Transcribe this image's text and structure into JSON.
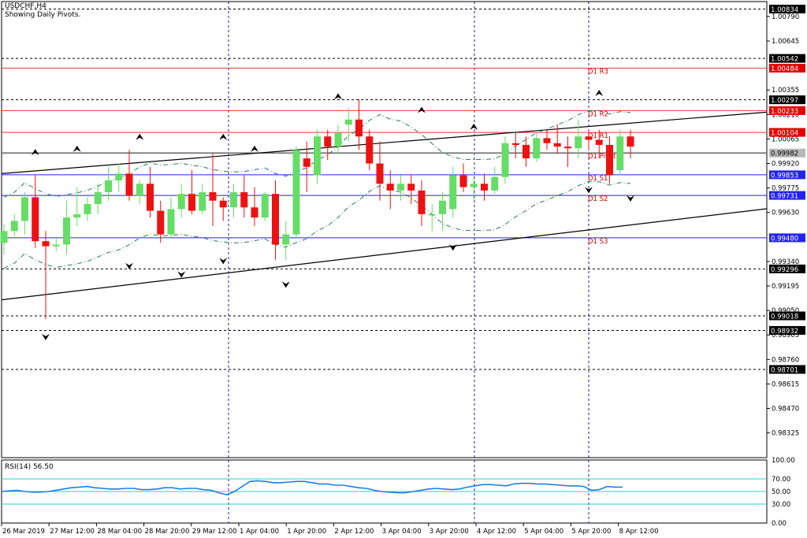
{
  "header": {
    "symbol_label": "USDCHF,H4",
    "status_text": "Showing Daily Pivots."
  },
  "colors": {
    "bull": "#66dd66",
    "bear": "#ee1111",
    "pivot_line": "#ee3333",
    "support_line": "#2222ee",
    "grid": "#1a1aaa",
    "rsi_line": "#1e7fe0",
    "rsi_levels": "#33cccc",
    "channel": "#000000",
    "envelope": "#2a7a55"
  },
  "price_axis": {
    "ticks": [
      "1.00790",
      "1.00645",
      "1.00355",
      "1.00210",
      "1.00065",
      "0.99920",
      "0.99775",
      "0.99630",
      "0.99340",
      "0.99195",
      "0.99050",
      "0.98905",
      "0.98760",
      "0.98615",
      "0.98470",
      "0.98325"
    ],
    "boxed_levels": [
      {
        "text": "1.00834",
        "style": "black"
      },
      {
        "text": "1.00542",
        "style": "black"
      },
      {
        "text": "1.00484",
        "style": "red"
      },
      {
        "text": "1.00297",
        "style": "black"
      },
      {
        "text": "1.00233",
        "style": "red"
      },
      {
        "text": "1.00104",
        "style": "red"
      },
      {
        "text": "0.99982",
        "style": "gray"
      },
      {
        "text": "0.99853",
        "style": "blue"
      },
      {
        "text": "0.99731",
        "style": "blue"
      },
      {
        "text": "0.99480",
        "style": "blue"
      },
      {
        "text": "0.99296",
        "style": "black"
      },
      {
        "text": "0.99018",
        "style": "black"
      },
      {
        "text": "0.98932",
        "style": "black"
      },
      {
        "text": "0.98701",
        "style": "black"
      }
    ]
  },
  "pivots": [
    {
      "label": "D1 R3",
      "price": 1.00484,
      "kind": "resistance"
    },
    {
      "label": "D1 R2",
      "price": 1.00233,
      "kind": "resistance"
    },
    {
      "label": "D1 R1",
      "price": 1.00104,
      "kind": "resistance"
    },
    {
      "label": "D1 Pivot",
      "price": 0.99982,
      "kind": "pivot"
    },
    {
      "label": "D1 S1",
      "price": 0.99853,
      "kind": "support"
    },
    {
      "label": "D1 S2",
      "price": 0.99731,
      "kind": "support"
    },
    {
      "label": "D1 S3",
      "price": 0.9948,
      "kind": "support"
    }
  ],
  "dashed_levels": [
    1.00834,
    1.00542,
    1.00297,
    0.99296,
    0.99018,
    0.98932,
    0.98701
  ],
  "time_axis": [
    "26 Mar 2019",
    "27 Mar 12:00",
    "28 Mar 04:00",
    "28 Mar 20:00",
    "29 Mar 12:00",
    "1 Apr 04:00",
    "1 Apr 20:00",
    "2 Apr 12:00",
    "3 Apr 04:00",
    "3 Apr 20:00",
    "4 Apr 12:00",
    "5 Apr 04:00",
    "5 Apr 20:00",
    "8 Apr 12:00"
  ],
  "rsi": {
    "label": "RSI(14) 56.50",
    "ticks": [
      "100.00",
      "70.00",
      "50.00",
      "30.00",
      "0.00"
    ],
    "levels": [
      70,
      50,
      30
    ],
    "values": [
      50,
      51,
      52,
      50,
      49,
      49,
      50,
      52,
      54,
      56,
      57,
      58,
      56,
      55,
      54,
      54,
      55,
      55,
      53,
      53,
      54,
      56,
      56,
      54,
      55,
      55,
      53,
      52,
      48,
      45,
      50,
      58,
      66,
      67,
      66,
      64,
      64,
      65,
      66,
      66,
      64,
      62,
      62,
      60,
      60,
      58,
      56,
      55,
      52,
      50,
      49,
      48,
      48,
      50,
      52,
      54,
      55,
      54,
      53,
      54,
      57,
      59,
      61,
      61,
      60,
      59,
      62,
      63,
      63,
      62,
      62,
      61,
      60,
      59,
      59,
      58,
      52,
      53,
      58,
      57,
      57
    ]
  },
  "candles": [
    [
      0.9945,
      0.9956,
      0.9952,
      0.9938
    ],
    [
      0.9952,
      0.9962,
      0.9958,
      0.9949
    ],
    [
      0.9958,
      0.9975,
      0.9972,
      0.995
    ],
    [
      0.9972,
      0.9985,
      0.9946,
      0.9942
    ],
    [
      0.9946,
      0.9952,
      0.9943,
      0.99
    ],
    [
      0.9943,
      0.9948,
      0.9944,
      0.994
    ],
    [
      0.9944,
      0.997,
      0.996,
      0.9938
    ],
    [
      0.996,
      0.9978,
      0.9962,
      0.9955
    ],
    [
      0.9962,
      0.9972,
      0.9968,
      0.9958
    ],
    [
      0.9968,
      0.998,
      0.9975,
      0.9962
    ],
    [
      0.9975,
      0.999,
      0.9982,
      0.997
    ],
    [
      0.9982,
      0.9992,
      0.9986,
      0.9975
    ],
    [
      0.9986,
      1.0,
      0.9973,
      0.997
    ],
    [
      0.9973,
      0.9982,
      0.998,
      0.9968
    ],
    [
      0.998,
      0.999,
      0.9964,
      0.996
    ],
    [
      0.9964,
      0.997,
      0.995,
      0.9945
    ],
    [
      0.995,
      0.9972,
      0.9965,
      0.9948
    ],
    [
      0.9965,
      0.998,
      0.9974,
      0.996
    ],
    [
      0.9974,
      0.9988,
      0.9964,
      0.9962
    ],
    [
      0.9964,
      0.998,
      0.9975,
      0.9962
    ],
    [
      0.9975,
      0.9998,
      0.997,
      0.9955
    ],
    [
      0.997,
      0.9972,
      0.9966,
      0.9958
    ],
    [
      0.9966,
      0.998,
      0.9975,
      0.996
    ],
    [
      0.9975,
      0.9985,
      0.9966,
      0.996
    ],
    [
      0.9966,
      0.9978,
      0.996,
      0.9955
    ],
    [
      0.996,
      0.9975,
      0.9974,
      0.9958
    ],
    [
      0.9974,
      0.9982,
      0.9944,
      0.9935
    ],
    [
      0.9944,
      0.9958,
      0.995,
      0.9935
    ],
    [
      0.995,
      1.0002,
      1.0,
      0.9948
    ],
    [
      0.9995,
      1.0005,
      0.999,
      0.9975
    ],
    [
      0.9985,
      1.0012,
      1.0008,
      0.998
    ],
    [
      1.0008,
      1.0012,
      1.0002,
      0.9994
    ],
    [
      1.0002,
      1.0015,
      1.001,
      0.9998
    ],
    [
      1.0015,
      1.0025,
      1.0018,
      1.0005
    ],
    [
      1.0018,
      1.003,
      1.0008,
      1.0
    ],
    [
      1.0008,
      1.0012,
      0.9992,
      0.9988
    ],
    [
      0.9992,
      1.0005,
      0.998,
      0.997
    ],
    [
      0.998,
      0.9988,
      0.9976,
      0.9965
    ],
    [
      0.9976,
      0.9985,
      0.998,
      0.997
    ],
    [
      0.998,
      0.9985,
      0.9976,
      0.9968
    ],
    [
      0.9976,
      0.9982,
      0.9962,
      0.9955
    ],
    [
      0.9962,
      0.9968,
      0.9962,
      0.9952
    ],
    [
      0.9962,
      0.9975,
      0.997,
      0.9952
    ],
    [
      0.9965,
      0.999,
      0.9985,
      0.996
    ],
    [
      0.9985,
      0.9992,
      0.9978,
      0.9975
    ],
    [
      0.9978,
      0.9986,
      0.998,
      0.997
    ],
    [
      0.998,
      0.9986,
      0.9976,
      0.997
    ],
    [
      0.9976,
      0.999,
      0.9984,
      0.9974
    ],
    [
      0.9984,
      1.0008,
      1.0004,
      0.998
    ],
    [
      1.0004,
      1.001,
      1.0003,
      0.9995
    ],
    [
      1.0003,
      1.0008,
      0.9995,
      0.999
    ],
    [
      0.9995,
      1.001,
      1.0007,
      0.9993
    ],
    [
      1.0007,
      1.0012,
      1.0004,
      1.0
    ],
    [
      1.0004,
      1.0015,
      1.0002,
      0.9998
    ],
    [
      1.0002,
      1.0008,
      1.0001,
      0.999
    ],
    [
      1.0001,
      1.0018,
      1.0008,
      0.9995
    ],
    [
      1.0008,
      1.001,
      1.0006,
      1.0
    ],
    [
      1.0006,
      1.0012,
      1.0003,
      0.9995
    ],
    [
      1.0003,
      1.0008,
      0.9985,
      0.998
    ],
    [
      0.9988,
      1.0012,
      1.0008,
      0.9985
    ],
    [
      1.0008,
      1.0012,
      1.0002,
      0.9995
    ]
  ],
  "fractals_up": [
    [
      3,
      0.9995
    ],
    [
      7,
      0.9997
    ],
    [
      13,
      1.0004
    ],
    [
      21,
      1.0004
    ],
    [
      24,
      0.9997
    ],
    [
      32,
      1.0028
    ],
    [
      40,
      1.002
    ],
    [
      45,
      1.001
    ],
    [
      57,
      1.003
    ]
  ],
  "fractals_down": [
    [
      4,
      0.9893
    ],
    [
      12,
      0.9935
    ],
    [
      17,
      0.993
    ],
    [
      21,
      0.9938
    ],
    [
      27,
      0.9924
    ],
    [
      43,
      0.9946
    ],
    [
      56,
      0.998
    ],
    [
      60,
      0.9975
    ]
  ]
}
